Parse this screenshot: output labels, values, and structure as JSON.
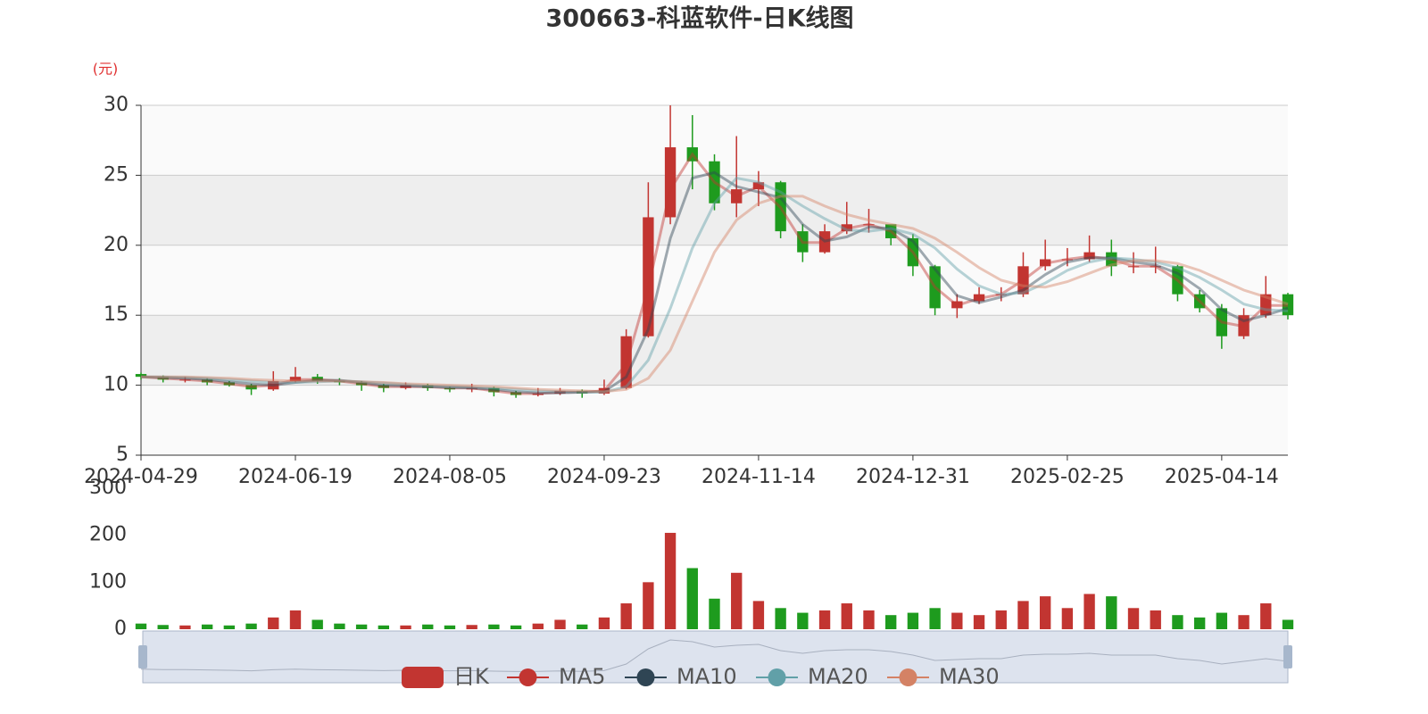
{
  "chart_data": [
    {
      "type": "candlestick",
      "title": "300663-科蓝软件-日K线图",
      "y_unit": "(元)",
      "name": "日K",
      "up_color": "#c23531",
      "down_color": "#1e9b1e",
      "categories": [
        "2024-04-29",
        null,
        null,
        null,
        null,
        null,
        null,
        "2024-06-19",
        null,
        null,
        null,
        null,
        null,
        null,
        "2024-08-05",
        null,
        null,
        null,
        null,
        null,
        null,
        "2024-09-23",
        null,
        null,
        null,
        null,
        null,
        null,
        "2024-11-14",
        null,
        null,
        null,
        null,
        null,
        null,
        "2024-12-31",
        null,
        null,
        null,
        null,
        null,
        null,
        "2025-02-25",
        null,
        null,
        null,
        null,
        null,
        null,
        "2025-04-14",
        null,
        null,
        null
      ],
      "open": [
        10.8,
        10.6,
        10.4,
        10.4,
        10.2,
        10.0,
        9.7,
        10.3,
        10.6,
        10.3,
        10.2,
        10.0,
        9.8,
        10.0,
        9.8,
        9.7,
        9.8,
        9.5,
        9.3,
        9.4,
        9.6,
        9.4,
        9.8,
        13.5,
        22.0,
        27.0,
        26.0,
        23.0,
        24.0,
        24.5,
        21.0,
        19.5,
        21.0,
        21.5,
        21.5,
        20.5,
        18.5,
        15.5,
        16.0,
        16.5,
        16.5,
        18.5,
        19.0,
        19.0,
        19.5,
        18.5,
        18.5,
        18.5,
        16.5,
        15.5,
        13.5,
        15.0,
        16.5
      ],
      "close": [
        10.6,
        10.4,
        10.4,
        10.2,
        10.0,
        9.7,
        10.3,
        10.6,
        10.3,
        10.2,
        10.0,
        9.8,
        10.0,
        9.8,
        9.7,
        9.8,
        9.5,
        9.3,
        9.4,
        9.6,
        9.4,
        9.8,
        13.5,
        22.0,
        27.0,
        26.0,
        23.0,
        24.0,
        24.5,
        21.0,
        19.5,
        21.0,
        21.5,
        21.5,
        20.5,
        18.5,
        15.5,
        16.0,
        16.5,
        16.5,
        18.5,
        19.0,
        19.0,
        19.5,
        18.5,
        18.5,
        18.5,
        16.5,
        15.5,
        13.5,
        15.0,
        16.5,
        15.0
      ],
      "low": [
        10.4,
        10.2,
        10.2,
        10.0,
        9.9,
        9.3,
        9.6,
        10.2,
        10.1,
        10.0,
        9.6,
        9.5,
        9.7,
        9.6,
        9.5,
        9.5,
        9.2,
        9.1,
        9.2,
        9.3,
        9.1,
        9.3,
        9.7,
        13.4,
        21.5,
        24.0,
        22.5,
        22.0,
        22.8,
        20.5,
        18.8,
        19.4,
        20.8,
        20.9,
        20.0,
        17.8,
        15.0,
        14.8,
        15.8,
        16.0,
        16.3,
        18.2,
        18.5,
        18.8,
        17.8,
        18.0,
        18.0,
        16.0,
        15.2,
        12.6,
        13.3,
        14.8,
        14.7
      ],
      "high": [
        10.9,
        10.7,
        10.6,
        10.5,
        10.3,
        10.1,
        11.0,
        11.3,
        10.8,
        10.5,
        10.3,
        10.1,
        10.2,
        10.1,
        9.9,
        10.1,
        9.9,
        9.6,
        9.8,
        9.8,
        9.7,
        10.4,
        14.0,
        24.5,
        30.0,
        29.3,
        26.5,
        27.8,
        25.3,
        24.6,
        21.5,
        21.5,
        23.1,
        22.6,
        21.3,
        20.8,
        18.6,
        16.5,
        17.0,
        17.0,
        19.5,
        20.4,
        19.8,
        20.7,
        20.4,
        19.5,
        19.9,
        18.6,
        16.8,
        15.8,
        15.5,
        17.8,
        16.6
      ],
      "series": [
        {
          "name": "MA5",
          "color": "#c23531",
          "values": [
            10.6,
            10.5,
            10.4,
            10.3,
            10.1,
            9.9,
            10.0,
            10.4,
            10.4,
            10.3,
            10.1,
            9.9,
            9.9,
            9.9,
            9.8,
            9.8,
            9.6,
            9.4,
            9.4,
            9.5,
            9.5,
            9.6,
            11.5,
            17,
            24,
            26.5,
            24.5,
            23.5,
            24.2,
            22.7,
            20.2,
            20.2,
            21.2,
            21.5,
            21,
            19.5,
            17,
            15.7,
            16.2,
            16.5,
            17.5,
            18.7,
            19,
            19.2,
            19,
            18.5,
            18.5,
            17.5,
            16,
            14.5,
            14.2,
            15.7,
            15.7
          ]
        },
        {
          "name": "MA10",
          "color": "#2f4554",
          "values": [
            10.6,
            10.55,
            10.5,
            10.4,
            10.25,
            10.1,
            10.0,
            10.2,
            10.35,
            10.35,
            10.2,
            10.0,
            9.95,
            9.9,
            9.85,
            9.8,
            9.7,
            9.55,
            9.45,
            9.45,
            9.5,
            9.55,
            10.6,
            14,
            20.5,
            24.8,
            25.2,
            24.2,
            23.8,
            23.4,
            21.5,
            20.3,
            20.6,
            21.3,
            21.2,
            20.3,
            18.3,
            16.4,
            15.9,
            16.3,
            16.8,
            17.9,
            18.8,
            19.1,
            19.1,
            18.8,
            18.6,
            18,
            16.9,
            15.4,
            14.6,
            15,
            15.5
          ]
        },
        {
          "name": "MA20",
          "color": "#61a0a8",
          "values": [
            10.6,
            10.6,
            10.55,
            10.5,
            10.4,
            10.3,
            10.2,
            10.2,
            10.25,
            10.3,
            10.25,
            10.15,
            10.05,
            9.95,
            9.9,
            9.85,
            9.8,
            9.7,
            9.6,
            9.55,
            9.5,
            9.5,
            9.9,
            11.8,
            15.5,
            19.8,
            23,
            24.8,
            24.5,
            23.8,
            22.8,
            21.9,
            21.1,
            21,
            21.2,
            20.8,
            19.8,
            18.3,
            17.1,
            16.5,
            16.6,
            17.3,
            18.2,
            18.8,
            19.1,
            19,
            18.8,
            18.4,
            17.7,
            16.8,
            15.8,
            15.4,
            15.3
          ]
        },
        {
          "name": "MA30",
          "color": "#d48265",
          "values": [
            10.6,
            10.6,
            10.6,
            10.55,
            10.5,
            10.4,
            10.35,
            10.3,
            10.3,
            10.3,
            10.25,
            10.2,
            10.1,
            10.05,
            10,
            9.95,
            9.9,
            9.8,
            9.7,
            9.65,
            9.6,
            9.55,
            9.7,
            10.5,
            12.5,
            16,
            19.5,
            21.8,
            23,
            23.5,
            23.5,
            22.8,
            22.2,
            21.8,
            21.5,
            21.2,
            20.5,
            19.5,
            18.4,
            17.5,
            17.1,
            17,
            17.4,
            18,
            18.6,
            18.9,
            18.9,
            18.7,
            18.2,
            17.5,
            16.8,
            16.3,
            15.8
          ]
        }
      ],
      "ylim": [
        5,
        30
      ],
      "yticks": [
        5,
        10,
        15,
        20,
        25,
        30
      ],
      "split_area": true
    },
    {
      "type": "bar",
      "values": [
        12,
        9,
        8,
        10,
        8,
        12,
        25,
        40,
        20,
        12,
        10,
        8,
        8,
        10,
        8,
        9,
        10,
        8,
        12,
        20,
        10,
        25,
        55,
        100,
        205,
        130,
        65,
        120,
        60,
        45,
        35,
        40,
        55,
        40,
        30,
        35,
        45,
        35,
        30,
        40,
        60,
        70,
        45,
        75,
        70,
        45,
        40,
        30,
        25,
        35,
        30,
        55,
        20
      ],
      "ylim": [
        0,
        300
      ],
      "yticks": [
        0,
        100,
        200,
        300
      ]
    }
  ]
}
